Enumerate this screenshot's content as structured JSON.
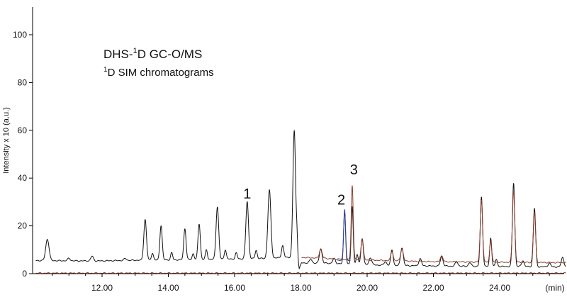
{
  "chart_data": {
    "type": "line",
    "title_main": {
      "pre": "DHS-",
      "sup": "1",
      "post": "D GC-O/MS"
    },
    "title_sub": {
      "sup": "1",
      "post": "D SIM chromatograms"
    },
    "xlabel": "(min)",
    "ylabel": "Intensity x 10 (a.u.)",
    "xlim": [
      10.0,
      26.0
    ],
    "ylim": [
      0,
      110
    ],
    "x_ticks": [
      "12.00",
      "14.00",
      "16.00",
      "18.00",
      "20.00",
      "22.00",
      "24.00"
    ],
    "y_ticks": [
      "0",
      "20",
      "40",
      "60",
      "80",
      "100"
    ],
    "grid": false,
    "colors": {
      "axis": "#000000",
      "black": "#111111",
      "brown": "#8a3b2a",
      "blue": "#3347a0",
      "baseline": "#9a4a3a"
    },
    "series": [
      {
        "color": "#111111",
        "baseline": [
          [
            10.0,
            5.5
          ],
          [
            11.8,
            5.3
          ],
          [
            13.0,
            5.6
          ],
          [
            15.0,
            5.9
          ],
          [
            17.0,
            6.4
          ],
          [
            17.9,
            7.0
          ],
          [
            17.95,
            2.0
          ],
          [
            18.02,
            4.5
          ],
          [
            19.0,
            4.3
          ],
          [
            20.5,
            3.5
          ],
          [
            22.0,
            3.2
          ],
          [
            24.0,
            3.0
          ],
          [
            26.0,
            2.8
          ]
        ],
        "peaks": [
          {
            "x": 10.35,
            "h": 9.0,
            "w": 0.05
          },
          {
            "x": 11.0,
            "h": 1.0,
            "w": 0.04
          },
          {
            "x": 11.7,
            "h": 2.0,
            "w": 0.04
          },
          {
            "x": 12.7,
            "h": 0.8,
            "w": 0.04
          },
          {
            "x": 13.3,
            "h": 17.0,
            "w": 0.04
          },
          {
            "x": 13.52,
            "h": 3.0,
            "w": 0.03
          },
          {
            "x": 13.78,
            "h": 14.5,
            "w": 0.035
          },
          {
            "x": 14.1,
            "h": 3.0,
            "w": 0.03
          },
          {
            "x": 14.5,
            "h": 13.0,
            "w": 0.035
          },
          {
            "x": 14.75,
            "h": 2.5,
            "w": 0.03
          },
          {
            "x": 14.93,
            "h": 15.0,
            "w": 0.035
          },
          {
            "x": 15.15,
            "h": 4.0,
            "w": 0.03
          },
          {
            "x": 15.48,
            "h": 22.0,
            "w": 0.04
          },
          {
            "x": 15.72,
            "h": 4.0,
            "w": 0.03
          },
          {
            "x": 16.05,
            "h": 2.5,
            "w": 0.03
          },
          {
            "x": 16.38,
            "h": 24.0,
            "w": 0.04
          },
          {
            "x": 16.65,
            "h": 3.5,
            "w": 0.03
          },
          {
            "x": 17.05,
            "h": 28.5,
            "w": 0.045
          },
          {
            "x": 17.45,
            "h": 5.0,
            "w": 0.035
          },
          {
            "x": 17.8,
            "h": 53.0,
            "w": 0.04
          },
          {
            "x": 17.88,
            "h": 7.0,
            "w": 0.02
          },
          {
            "x": 18.3,
            "h": 1.5,
            "w": 0.04
          },
          {
            "x": 18.6,
            "h": 6.0,
            "w": 0.04
          },
          {
            "x": 19.0,
            "h": 2.0,
            "w": 0.04
          },
          {
            "x": 19.32,
            "h": 22.0,
            "w": 0.03
          },
          {
            "x": 19.55,
            "h": 24.0,
            "w": 0.03
          },
          {
            "x": 19.7,
            "h": 4.0,
            "w": 0.03
          },
          {
            "x": 19.85,
            "h": 11.0,
            "w": 0.035
          },
          {
            "x": 20.1,
            "h": 3.0,
            "w": 0.04
          },
          {
            "x": 20.55,
            "h": 1.5,
            "w": 0.04
          },
          {
            "x": 20.75,
            "h": 6.5,
            "w": 0.035
          },
          {
            "x": 21.05,
            "h": 7.5,
            "w": 0.04
          },
          {
            "x": 21.6,
            "h": 3.0,
            "w": 0.04
          },
          {
            "x": 22.25,
            "h": 4.0,
            "w": 0.04
          },
          {
            "x": 22.7,
            "h": 2.0,
            "w": 0.04
          },
          {
            "x": 23.1,
            "h": 1.5,
            "w": 0.04
          },
          {
            "x": 23.45,
            "h": 29.0,
            "w": 0.035
          },
          {
            "x": 23.73,
            "h": 12.0,
            "w": 0.03
          },
          {
            "x": 23.9,
            "h": 3.0,
            "w": 0.03
          },
          {
            "x": 24.42,
            "h": 35.0,
            "w": 0.035
          },
          {
            "x": 24.7,
            "h": 2.5,
            "w": 0.04
          },
          {
            "x": 25.05,
            "h": 24.5,
            "w": 0.035
          },
          {
            "x": 25.5,
            "h": 1.5,
            "w": 0.04
          },
          {
            "x": 25.9,
            "h": 4.0,
            "w": 0.04
          }
        ]
      },
      {
        "color": "#8a3b2a",
        "baseline": [
          [
            18.02,
            6.8
          ],
          [
            19.0,
            6.2
          ],
          [
            20.5,
            5.5
          ],
          [
            22.0,
            5.0
          ],
          [
            24.0,
            4.8
          ],
          [
            26.0,
            4.6
          ]
        ],
        "peaks": [
          {
            "x": 18.6,
            "h": 4.0,
            "w": 0.04
          },
          {
            "x": 19.55,
            "h": 31.0,
            "w": 0.03
          },
          {
            "x": 19.85,
            "h": 9.0,
            "w": 0.035
          },
          {
            "x": 20.75,
            "h": 4.0,
            "w": 0.035
          },
          {
            "x": 21.05,
            "h": 5.0,
            "w": 0.04
          },
          {
            "x": 22.25,
            "h": 2.5,
            "w": 0.04
          },
          {
            "x": 23.45,
            "h": 26.0,
            "w": 0.035
          },
          {
            "x": 23.73,
            "h": 9.0,
            "w": 0.03
          },
          {
            "x": 24.42,
            "h": 30.0,
            "w": 0.035
          },
          {
            "x": 25.05,
            "h": 21.0,
            "w": 0.035
          }
        ]
      },
      {
        "color": "#3347a0",
        "baseline": [
          [
            19.1,
            5.5
          ],
          [
            19.5,
            5.5
          ]
        ],
        "peaks": [
          {
            "x": 19.32,
            "h": 21.5,
            "w": 0.03
          }
        ]
      },
      {
        "color": "#9a4a3a",
        "baseline": [
          [
            10.0,
            0.2
          ],
          [
            26.0,
            0.2
          ]
        ],
        "peaks": []
      }
    ],
    "annotations": [
      {
        "label": "1",
        "x": 16.38,
        "y": 31.5
      },
      {
        "label": "2",
        "x": 19.22,
        "y": 29.0
      },
      {
        "label": "3",
        "x": 19.6,
        "y": 41.5
      }
    ]
  }
}
